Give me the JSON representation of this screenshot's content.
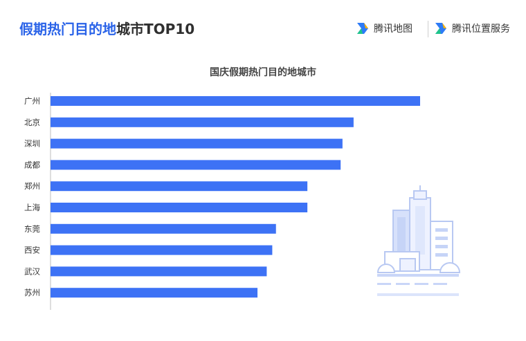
{
  "header": {
    "title_highlight": "假期热门目的地",
    "title_rest": "城市TOP10",
    "brands": [
      {
        "label": "腾讯地图",
        "icon": "tencent-map-logo"
      },
      {
        "label": "腾讯位置服务",
        "icon": "tencent-location-service-logo"
      }
    ]
  },
  "colors": {
    "bar": "#3d72f5",
    "title_highlight": "#2a63e8",
    "axis": "#bdbdbd"
  },
  "chart_data": {
    "type": "bar",
    "orientation": "horizontal",
    "title": "国庆假期热门目的地城市",
    "categories": [
      "广州",
      "北京",
      "深圳",
      "成都",
      "郑州",
      "上海",
      "东莞",
      "西安",
      "武汉",
      "苏州"
    ],
    "values": [
      100,
      82,
      79,
      78.5,
      69.5,
      69.5,
      61,
      60,
      58.5,
      56
    ],
    "xlim": [
      0,
      100
    ],
    "grid": false,
    "legend": "none",
    "value_axis_labels": "none"
  }
}
